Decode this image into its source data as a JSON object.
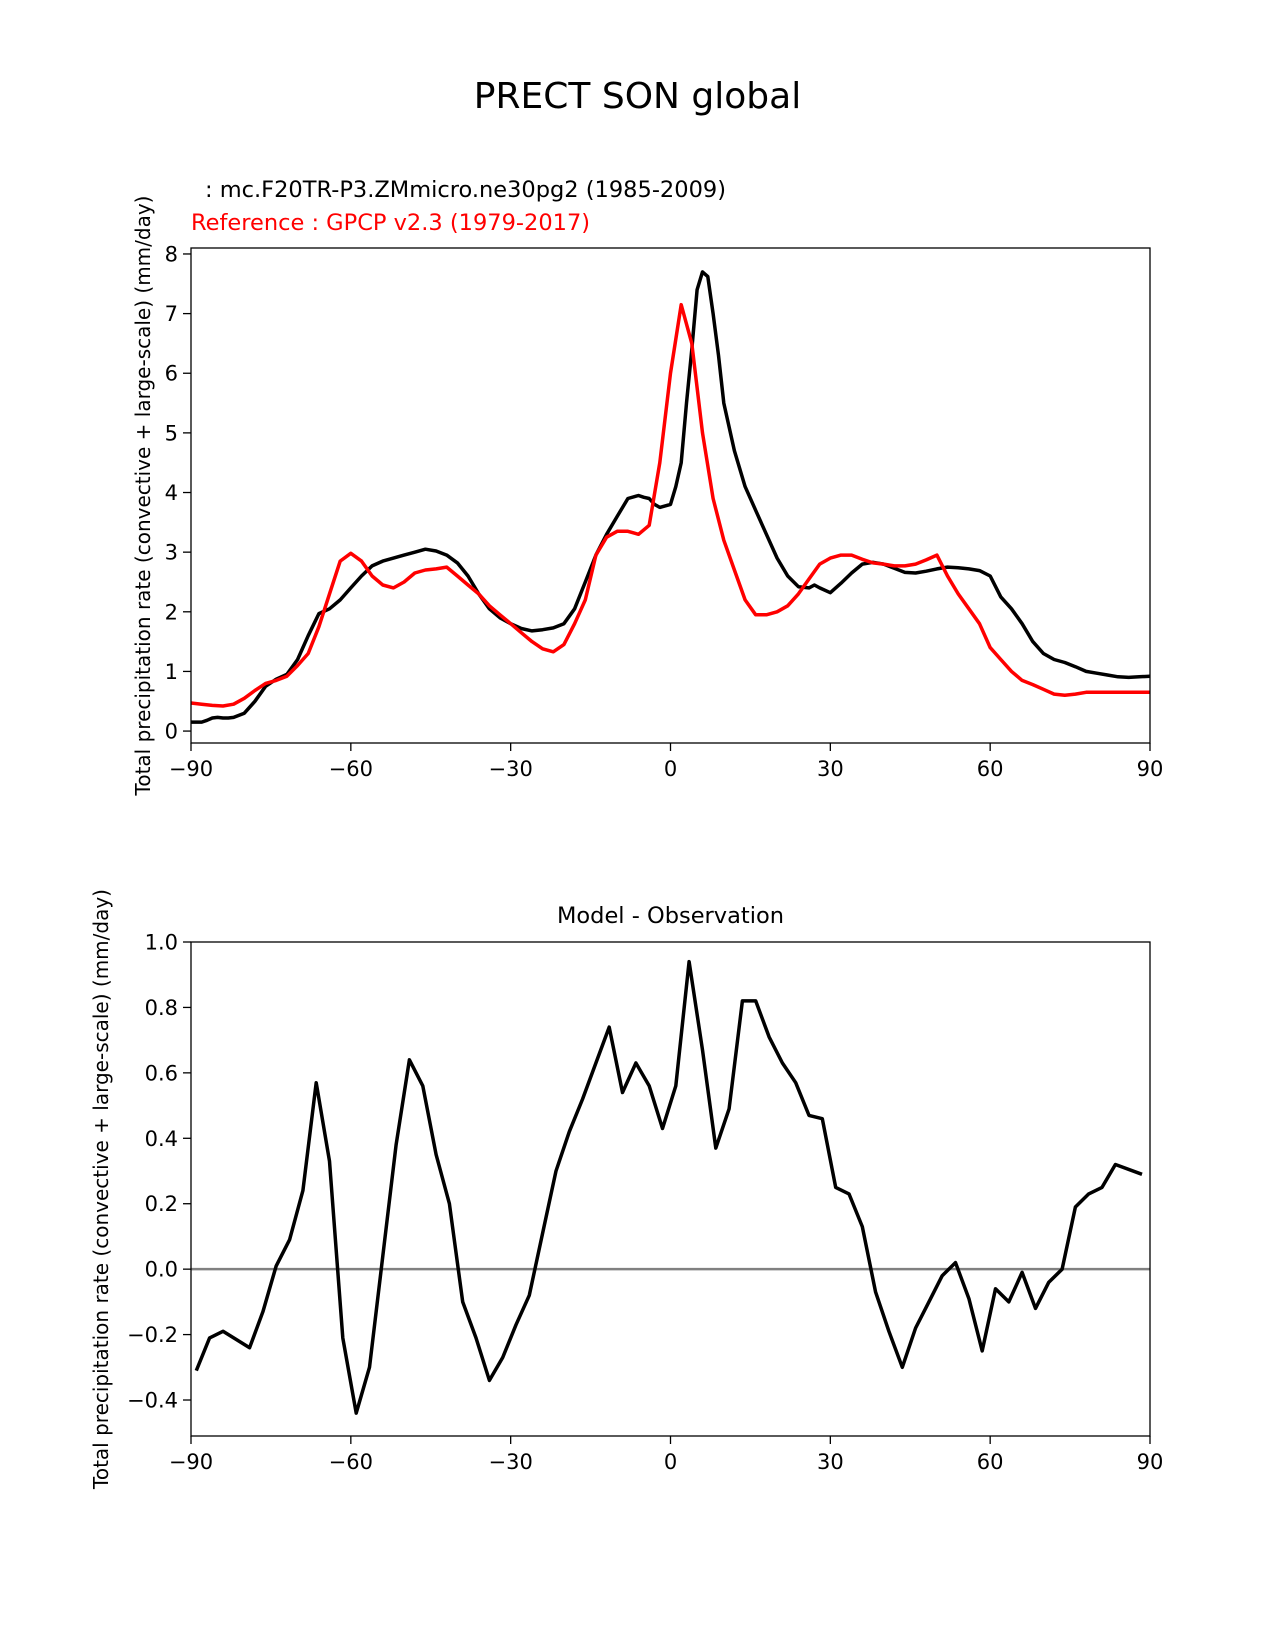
{
  "figure": {
    "title": "PRECT SON global"
  },
  "colors": {
    "model": "#000000",
    "reference": "#ff0000",
    "zero_line": "#808080"
  },
  "chart_data": [
    {
      "type": "line",
      "subtitle_model": ": mc.F20TR-P3.ZMmicro.ne30pg2 (1985-2009)",
      "subtitle_reference": "Reference : GPCP v2.3 (1979-2017)",
      "xlabel": "",
      "ylabel": "Total precipitation rate (convective + large-scale) (mm/day)",
      "xlim": [
        -90,
        90
      ],
      "ylim": [
        -0.2,
        8.1
      ],
      "xticks": [
        -90,
        -60,
        -30,
        0,
        30,
        60,
        90
      ],
      "xtick_labels": [
        "−90",
        "−60",
        "−30",
        "0",
        "30",
        "60",
        "90"
      ],
      "yticks": [
        0,
        1,
        2,
        3,
        4,
        5,
        6,
        7,
        8
      ],
      "ytick_labels": [
        "0",
        "1",
        "2",
        "3",
        "4",
        "5",
        "6",
        "7",
        "8"
      ],
      "series": [
        {
          "name": "mc.F20TR-P3.ZMmicro.ne30pg2",
          "x": [
            -90,
            -88,
            -87,
            -86,
            -85,
            -84,
            -83,
            -82,
            -80,
            -78,
            -76,
            -74,
            -72,
            -70,
            -68,
            -66,
            -64,
            -62,
            -60,
            -58,
            -56,
            -54,
            -52,
            -50,
            -48,
            -46,
            -44,
            -42,
            -40,
            -38,
            -36,
            -34,
            -32,
            -30,
            -28,
            -26,
            -24,
            -22,
            -20,
            -18,
            -16,
            -14,
            -12,
            -10,
            -8,
            -6,
            -5,
            -4,
            -3,
            -2,
            0,
            1,
            2,
            3,
            4,
            5,
            6,
            7,
            8,
            9,
            10,
            12,
            14,
            16,
            18,
            20,
            22,
            24,
            26,
            27,
            28,
            30,
            32,
            34,
            36,
            38,
            40,
            42,
            44,
            46,
            48,
            50,
            52,
            54,
            56,
            58,
            60,
            62,
            64,
            66,
            68,
            70,
            72,
            74,
            76,
            78,
            80,
            82,
            84,
            86,
            88,
            90
          ],
          "values": [
            0.15,
            0.15,
            0.18,
            0.22,
            0.23,
            0.22,
            0.22,
            0.23,
            0.3,
            0.5,
            0.75,
            0.87,
            0.95,
            1.2,
            1.6,
            1.97,
            2.05,
            2.2,
            2.4,
            2.6,
            2.77,
            2.85,
            2.9,
            2.95,
            3.0,
            3.05,
            3.02,
            2.95,
            2.82,
            2.6,
            2.3,
            2.05,
            1.9,
            1.8,
            1.72,
            1.68,
            1.7,
            1.73,
            1.8,
            2.05,
            2.5,
            2.95,
            3.3,
            3.6,
            3.9,
            3.95,
            3.92,
            3.9,
            3.8,
            3.75,
            3.8,
            4.1,
            4.5,
            5.5,
            6.4,
            7.4,
            7.7,
            7.62,
            7.0,
            6.3,
            5.5,
            4.7,
            4.1,
            3.7,
            3.3,
            2.9,
            2.6,
            2.42,
            2.4,
            2.45,
            2.4,
            2.32,
            2.48,
            2.65,
            2.8,
            2.83,
            2.8,
            2.73,
            2.66,
            2.65,
            2.68,
            2.72,
            2.75,
            2.74,
            2.72,
            2.69,
            2.6,
            2.25,
            2.05,
            1.8,
            1.5,
            1.3,
            1.2,
            1.15,
            1.08,
            1.0,
            0.97,
            0.94,
            0.91,
            0.9,
            0.91,
            0.92
          ]
        },
        {
          "name": "GPCP v2.3",
          "x": [
            -90,
            -88,
            -86,
            -84,
            -82,
            -80,
            -78,
            -76,
            -74,
            -72,
            -70,
            -68,
            -66,
            -64,
            -62,
            -60,
            -58,
            -56,
            -54,
            -52,
            -50,
            -48,
            -46,
            -44,
            -42,
            -40,
            -38,
            -36,
            -34,
            -32,
            -30,
            -28,
            -26,
            -24,
            -22,
            -20,
            -18,
            -16,
            -14,
            -12,
            -10,
            -8,
            -6,
            -4,
            -2,
            0,
            2,
            4,
            6,
            8,
            10,
            12,
            14,
            16,
            18,
            20,
            22,
            24,
            26,
            28,
            30,
            32,
            34,
            36,
            38,
            40,
            42,
            44,
            46,
            48,
            50,
            52,
            54,
            56,
            58,
            60,
            62,
            64,
            66,
            68,
            70,
            72,
            74,
            76,
            78,
            80,
            82,
            84,
            86,
            88,
            90
          ],
          "values": [
            0.47,
            0.45,
            0.43,
            0.42,
            0.45,
            0.55,
            0.68,
            0.8,
            0.85,
            0.92,
            1.1,
            1.3,
            1.75,
            2.3,
            2.85,
            2.98,
            2.85,
            2.6,
            2.45,
            2.4,
            2.5,
            2.65,
            2.7,
            2.72,
            2.75,
            2.6,
            2.45,
            2.3,
            2.1,
            1.95,
            1.8,
            1.65,
            1.5,
            1.38,
            1.33,
            1.45,
            1.8,
            2.2,
            2.95,
            3.25,
            3.35,
            3.35,
            3.3,
            3.45,
            4.5,
            6.0,
            7.15,
            6.5,
            5.0,
            3.9,
            3.2,
            2.7,
            2.2,
            1.95,
            1.95,
            2.0,
            2.1,
            2.3,
            2.55,
            2.8,
            2.9,
            2.95,
            2.95,
            2.88,
            2.82,
            2.8,
            2.77,
            2.77,
            2.8,
            2.87,
            2.95,
            2.6,
            2.3,
            2.05,
            1.8,
            1.4,
            1.2,
            1.0,
            0.85,
            0.78,
            0.7,
            0.62,
            0.6,
            0.62,
            0.65,
            0.65,
            0.65,
            0.65,
            0.65,
            0.65,
            0.65
          ]
        }
      ]
    },
    {
      "type": "line",
      "title": "Model - Observation",
      "xlabel": "",
      "ylabel": "Total precipitation rate (convective + large-scale) (mm/day)",
      "xlim": [
        -90,
        90
      ],
      "ylim": [
        -0.51,
        1.0
      ],
      "xticks": [
        -90,
        -60,
        -30,
        0,
        30,
        60,
        90
      ],
      "xtick_labels": [
        "−90",
        "−60",
        "−30",
        "0",
        "30",
        "60",
        "90"
      ],
      "yticks": [
        -0.4,
        -0.2,
        0.0,
        0.2,
        0.4,
        0.6,
        0.8,
        1.0
      ],
      "ytick_labels": [
        "−0.4",
        "−0.2",
        "0.0",
        "0.2",
        "0.4",
        "0.6",
        "0.8",
        "1.0"
      ],
      "zero_line": 0,
      "series": [
        {
          "name": "Model - Observation",
          "x": [
            -89,
            -86.5,
            -84,
            -79,
            -76.5,
            -74,
            -71.5,
            -69,
            -66.5,
            -64,
            -61.5,
            -59,
            -56.5,
            -54,
            -51.5,
            -49,
            -46.5,
            -44,
            -41.5,
            -39,
            -36.5,
            -34,
            -31.5,
            -29,
            -26.5,
            -24,
            -21.5,
            -19,
            -16.5,
            -14,
            -11.5,
            -9,
            -6.5,
            -4,
            -1.5,
            1,
            3.5,
            6,
            8.5,
            11,
            13.5,
            16,
            18.5,
            21,
            23.5,
            26,
            28.5,
            31,
            33.5,
            36,
            38.5,
            41,
            43.5,
            46,
            48.5,
            51,
            53.5,
            56,
            58.5,
            61,
            63.5,
            66,
            68.5,
            71,
            73.5,
            76,
            78.5,
            81,
            83.5,
            88.5
          ],
          "values": [
            -0.31,
            -0.21,
            -0.19,
            -0.24,
            -0.13,
            0.01,
            0.09,
            0.24,
            0.57,
            0.33,
            -0.21,
            -0.44,
            -0.3,
            0.04,
            0.38,
            0.64,
            0.56,
            0.35,
            0.2,
            -0.1,
            -0.21,
            -0.34,
            -0.27,
            -0.17,
            -0.08,
            0.11,
            0.3,
            0.42,
            0.52,
            0.63,
            0.74,
            0.54,
            0.63,
            0.56,
            0.43,
            0.56,
            0.94,
            0.67,
            0.37,
            0.49,
            0.82,
            0.82,
            0.71,
            0.63,
            0.57,
            0.47,
            0.46,
            0.25,
            0.23,
            0.13,
            -0.07,
            -0.19,
            -0.3,
            -0.18,
            -0.1,
            -0.02,
            0.02,
            -0.09,
            -0.25,
            -0.06,
            -0.1,
            -0.01,
            -0.12,
            -0.04,
            0.0,
            0.19,
            0.23,
            0.25,
            0.32,
            0.29
          ]
        }
      ]
    }
  ]
}
